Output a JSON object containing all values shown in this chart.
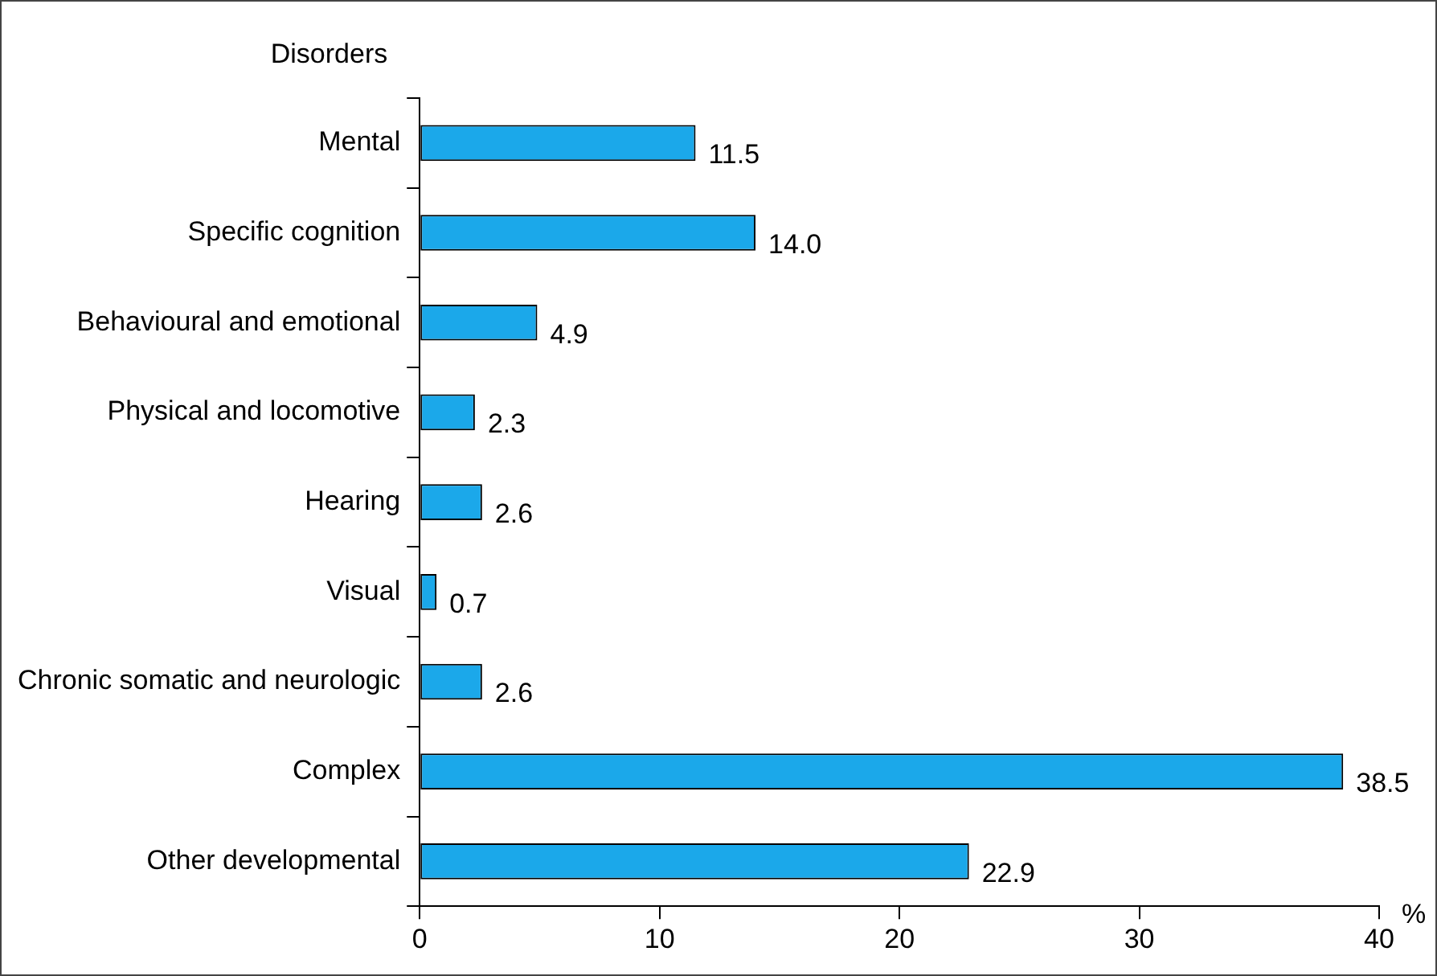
{
  "chart_data": {
    "type": "bar",
    "orientation": "horizontal",
    "ylabel": "Disorders",
    "xlabel": "%",
    "categories": [
      "Mental",
      "Specific cognition",
      "Behavioural and emotional",
      "Physical and locomotive",
      "Hearing",
      "Visual",
      "Chronic somatic and neurologic",
      "Complex",
      "Other developmental"
    ],
    "values": [
      11.5,
      14.0,
      4.9,
      2.3,
      2.6,
      0.7,
      2.6,
      38.5,
      22.9
    ],
    "value_labels": [
      "11.5",
      "14.0",
      "4.9",
      "2.3",
      "2.6",
      "0.7",
      "2.6",
      "38.5",
      "22.9"
    ],
    "color": "#1ba8ea",
    "xlim": [
      0,
      40
    ],
    "xticks": [
      0,
      10,
      20,
      30,
      40
    ],
    "grid": false,
    "legend": false
  }
}
